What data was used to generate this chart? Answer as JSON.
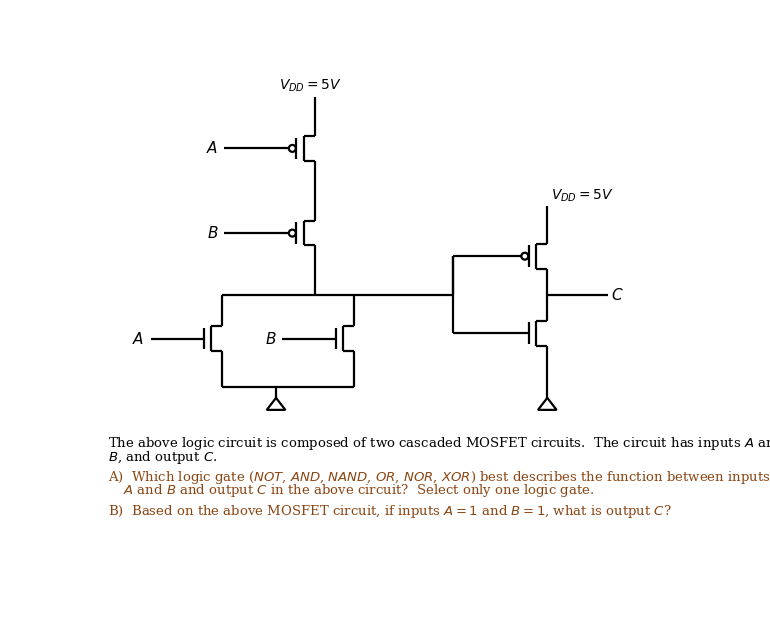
{
  "bg_color": "#ffffff",
  "lw": 1.6,
  "vdd1_label": "$V_{DD} = 5V$",
  "vdd2_label": "$V_{DD} = 5V$",
  "label_A_top": "$A$",
  "label_B_top": "$B$",
  "label_A_bot": "$A$",
  "label_B_bot": "$B$",
  "label_C": "$C$",
  "text1": "The above logic circuit is composed of two cascaded MOSFET circuits.  The circuit has inputs $A$ and",
  "text2": "$B$, and output $C$.",
  "qA1": "A)  Which logic gate ($NOT$, $AND$, $NAND$, $OR$, $NOR$, $XOR$) best describes the function between inputs",
  "qA2": "$A$ and $B$ and output $C$ in the above circuit?  Select only one logic gate.",
  "qB": "B)  Based on the above MOSFET circuit, if inputs $A = 1$ and $B = 1$, what is output $C$?",
  "brown": "#8B4513",
  "black": "#000000"
}
